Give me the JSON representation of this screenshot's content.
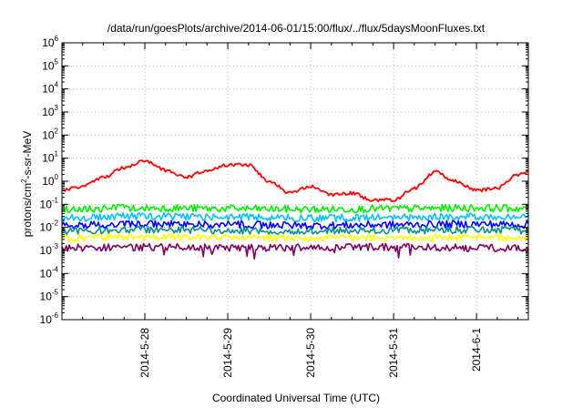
{
  "chart_data": {
    "type": "line",
    "title": "/data/run/goesPlots/archive/2014-06-01/15:00/flux/../flux/5daysMoonFluxes.txt",
    "xlabel": "Coordinated Universal Time (UTC)",
    "ylabel": {
      "pre": "protons/cm",
      "sup": "2",
      "post": "-s-sr-MeV"
    },
    "y_scale": "log",
    "ylim_exponent": [
      -6,
      6
    ],
    "y_tick_base": "10",
    "y_tick_exponents": [
      "6",
      "5",
      "4",
      "3",
      "2",
      "1",
      "0",
      "-1",
      "-2",
      "-3",
      "-4",
      "-5",
      "-6"
    ],
    "xlim_days": [
      "2014-05-27 00:00",
      "2014-06-01 15:00"
    ],
    "x_tick_labels": [
      "2014-5-28",
      "2014-5-29",
      "2014-5-30",
      "2014-5-31",
      "2014-6-1"
    ],
    "grid": true,
    "series": [
      {
        "color": "#ff0000",
        "x": [
          "2014-05-27 00:00",
          "2014-05-27 06:00",
          "2014-05-27 12:00",
          "2014-05-27 18:00",
          "2014-05-28 00:00",
          "2014-05-28 06:00",
          "2014-05-28 12:00",
          "2014-05-28 18:00",
          "2014-05-29 00:00",
          "2014-05-29 06:00",
          "2014-05-29 12:00",
          "2014-05-29 18:00",
          "2014-05-30 00:00",
          "2014-05-30 06:00",
          "2014-05-30 12:00",
          "2014-05-30 18:00",
          "2014-05-31 00:00",
          "2014-05-31 06:00",
          "2014-05-31 12:00",
          "2014-05-31 18:00",
          "2014-06-01 00:00",
          "2014-06-01 06:00",
          "2014-06-01 12:00",
          "2014-06-01 15:00"
        ],
        "y": [
          0.4,
          0.6,
          1.5,
          4.0,
          8.0,
          3.0,
          1.5,
          3.0,
          5.0,
          5.0,
          1.0,
          0.3,
          0.6,
          0.25,
          0.3,
          0.15,
          0.15,
          0.5,
          2.5,
          1.0,
          0.4,
          0.5,
          2.0,
          2.5
        ]
      },
      {
        "color": "#00ee00",
        "x": [
          "2014-05-27 00:00",
          "2014-05-28 00:00",
          "2014-05-29 00:00",
          "2014-05-30 00:00",
          "2014-05-31 00:00",
          "2014-06-01 00:00",
          "2014-06-01 15:00"
        ],
        "y": [
          0.06,
          0.07,
          0.065,
          0.06,
          0.065,
          0.07,
          0.065
        ]
      },
      {
        "color": "#00c0ff",
        "x": [
          "2014-05-27 00:00",
          "2014-05-28 00:00",
          "2014-05-29 00:00",
          "2014-05-30 00:00",
          "2014-05-31 00:00",
          "2014-06-01 00:00",
          "2014-06-01 15:00"
        ],
        "y": [
          0.025,
          0.03,
          0.028,
          0.025,
          0.027,
          0.03,
          0.028
        ]
      },
      {
        "color": "#0000ff",
        "x": [
          "2014-05-27 00:00",
          "2014-05-28 00:00",
          "2014-05-29 00:00",
          "2014-05-30 00:00",
          "2014-05-31 00:00",
          "2014-06-01 00:00",
          "2014-06-01 15:00"
        ],
        "y": [
          0.012,
          0.014,
          0.013,
          0.012,
          0.013,
          0.014,
          0.013
        ]
      },
      {
        "color": "#009090",
        "x": [
          "2014-05-27 00:00",
          "2014-05-28 00:00",
          "2014-05-29 00:00",
          "2014-05-30 00:00",
          "2014-05-31 00:00",
          "2014-06-01 00:00",
          "2014-06-01 15:00"
        ],
        "y": [
          0.007,
          0.008,
          0.0075,
          0.007,
          0.0075,
          0.008,
          0.0075
        ]
      },
      {
        "color": "#ffff00",
        "x": [
          "2014-05-27 00:00",
          "2014-05-28 00:00",
          "2014-05-29 00:00",
          "2014-05-30 00:00",
          "2014-05-31 00:00",
          "2014-06-01 00:00",
          "2014-06-01 15:00"
        ],
        "y": [
          0.0035,
          0.0038,
          0.0036,
          0.0035,
          0.0037,
          0.0036,
          0.0036
        ]
      },
      {
        "color": "#800060",
        "x": [
          "2014-05-27 00:00",
          "2014-05-28 00:00",
          "2014-05-29 00:00",
          "2014-05-30 00:00",
          "2014-05-31 00:00",
          "2014-06-01 00:00",
          "2014-06-01 15:00"
        ],
        "y": [
          0.0013,
          0.0014,
          0.0013,
          0.0013,
          0.0014,
          0.0013,
          0.0013
        ]
      }
    ]
  }
}
